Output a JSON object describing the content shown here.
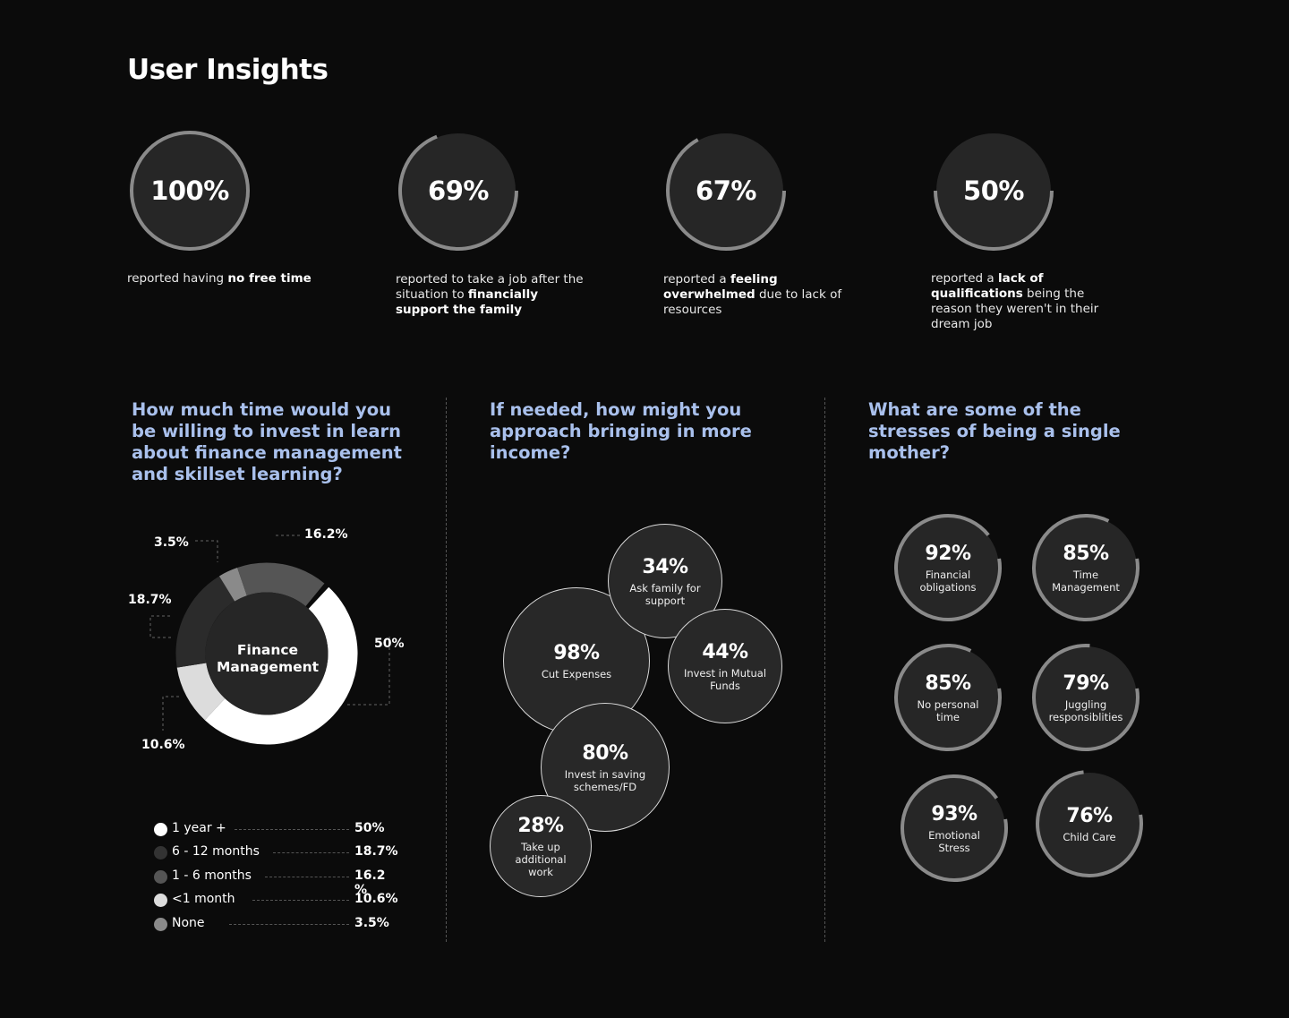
{
  "title": "User Insights",
  "stats": [
    {
      "value": "100%",
      "fraction": 1.0,
      "desc_html": "reported having <b>no free time</b>"
    },
    {
      "value": "69%",
      "fraction": 0.69,
      "desc_html": "reported to take a job after the situation to <b>financially support the family</b>"
    },
    {
      "value": "67%",
      "fraction": 0.67,
      "desc_html": "reported a <b>feeling overwhelmed</b> due to lack of resources"
    },
    {
      "value": "50%",
      "fraction": 0.5,
      "desc_html": "reported a <b>lack of qualifications</b> being the reason they weren't in their dream job"
    }
  ],
  "questions": {
    "q1": "How much time would you be willing to invest in learn about finance management and skillset learning?",
    "q2": "If needed, how might you approach bringing in more income?",
    "q3": "What are some of the stresses of being a single mother?"
  },
  "chart_data": [
    {
      "type": "pie",
      "title": "Finance Management",
      "categories": [
        "1 year +",
        "6 - 12 months",
        "1 - 6 months",
        "<1 month",
        "None"
      ],
      "values": [
        50,
        18.7,
        16.2,
        10.6,
        3.5
      ],
      "value_labels": [
        "50%",
        "18.7%",
        "16.2%",
        "10.6%",
        "3.5%"
      ],
      "legend_values": [
        "50%",
        "18.7%",
        "16.2 %",
        "10.6%",
        "3.5%"
      ],
      "colors": [
        "#ffffff",
        "#2b2b2b",
        "#555555",
        "#dcdcdc",
        "#8a8a8a"
      ]
    },
    {
      "type": "bubble",
      "categories": [
        "Ask family for support",
        "Cut Expenses",
        "Invest in Mutual Funds",
        "Invest in saving schemes/FD",
        "Take up additional work"
      ],
      "values": [
        34,
        98,
        44,
        80,
        28
      ],
      "labels": [
        "34%",
        "98%",
        "44%",
        "80%",
        "28%"
      ]
    },
    {
      "type": "bar",
      "categories": [
        "Financial obligations",
        "Time Management",
        "No personal time",
        "Juggling responsiblities",
        "Emotional Stress",
        "Child Care"
      ],
      "values": [
        92,
        85,
        85,
        79,
        93,
        76
      ],
      "labels": [
        "92%",
        "85%",
        "85%",
        "79%",
        "93%",
        "76%"
      ]
    }
  ],
  "colors": {
    "background": "#0b0b0b",
    "accent": "#a9c0ec",
    "ring": "#8a8a8a",
    "circle": "#262626"
  }
}
